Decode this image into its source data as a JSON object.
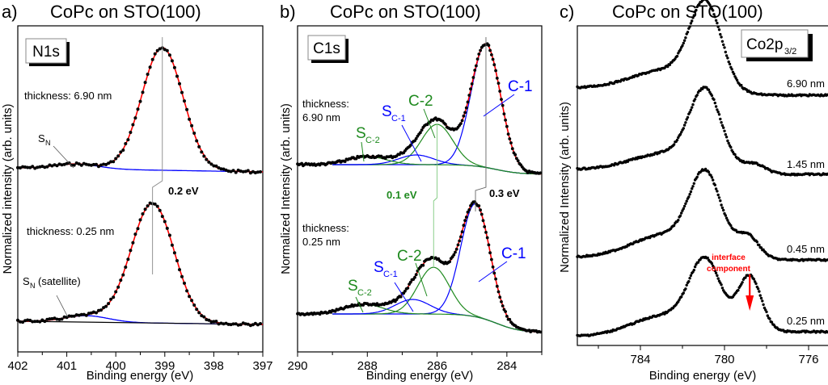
{
  "chart_data": [
    {
      "type": "line",
      "panel_label": "a)",
      "title": "CoPc on STO(100)",
      "core_level_label": "N1s",
      "xlabel": "Binding energy (eV)",
      "ylabel": "Normalized intensity (arb. units)",
      "xlim": [
        402,
        397
      ],
      "x_ticks": [
        "402",
        "401",
        "400",
        "399",
        "398",
        "397"
      ],
      "x_tick_values": [
        402,
        401,
        400,
        399,
        398,
        397
      ],
      "series": [
        {
          "name": "thickness: 6.90 nm",
          "main_peak_eV": 399.05,
          "satellite_eV": 400.8,
          "peak_height": 1.0
        },
        {
          "name": "thickness: 0.25 nm",
          "main_peak_eV": 399.25,
          "satellite_eV": 400.6,
          "peak_height": 1.0
        }
      ],
      "annotations": [
        {
          "text": "S",
          "sub": "N",
          "target": "satellite 6.90 nm"
        },
        {
          "text": "S",
          "sub": "N",
          "suffix": " (satellite)",
          "target": "satellite 0.25 nm"
        },
        {
          "text": "0.2 eV",
          "style": "bold",
          "meaning": "peak shift between thicknesses"
        }
      ],
      "legend_colors": {
        "data": "#000000",
        "fit_envelope": "#ff0000",
        "satellite_component": "#0000ff",
        "background": "#000000"
      }
    },
    {
      "type": "line",
      "panel_label": "b)",
      "title": "CoPc on STO(100)",
      "core_level_label": "C1s",
      "xlabel": "Binding energy (eV)",
      "ylabel": "Normalized Intensity (arb. units)",
      "xlim": [
        290,
        283
      ],
      "x_ticks": [
        "290",
        "288",
        "286",
        "284"
      ],
      "x_tick_values": [
        290,
        288,
        286,
        284
      ],
      "series": [
        {
          "name": "thickness: 6.90 nm",
          "components": {
            "C-1": 284.6,
            "C-2": 286.0,
            "S_C-1": 286.6,
            "S_C-2": 288.0
          }
        },
        {
          "name": "thickness: 0.25 nm",
          "components": {
            "C-1": 284.9,
            "C-2": 286.1,
            "S_C-1": 286.7,
            "S_C-2": 288.1
          }
        }
      ],
      "component_labels": [
        {
          "text": "C-1",
          "color": "#0000ff"
        },
        {
          "text": "C-2",
          "color": "#008000"
        },
        {
          "text": "S",
          "sub": "C-1",
          "color": "#0000ff"
        },
        {
          "text": "S",
          "sub": "C-2",
          "color": "#008000"
        }
      ],
      "annotations": [
        {
          "text": "0.1 eV",
          "style": "bold",
          "color": "#008000",
          "meaning": "C-2 shift"
        },
        {
          "text": "0.3 eV",
          "style": "bold",
          "color": "#000000",
          "meaning": "C-1 shift"
        }
      ],
      "thickness_labels": [
        [
          "thickness:",
          "6.90 nm"
        ],
        [
          "thickness:",
          "0.25 nm"
        ]
      ]
    },
    {
      "type": "line",
      "panel_label": "c)",
      "title": "CoPc on STO(100)",
      "core_level_label": "Co2p",
      "core_level_sub": "3/2",
      "xlabel": "Binding energy (eV)",
      "ylabel": "Normalized Intensity (arb. units)",
      "xlim": [
        787,
        775
      ],
      "x_ticks": [
        "784",
        "780",
        "776"
      ],
      "x_tick_values": [
        784,
        780,
        776
      ],
      "minor_tick_values": [
        786,
        782,
        778
      ],
      "series": [
        {
          "name": "6.90 nm",
          "main_peak_eV": 780.9,
          "shoulder_eV": 782.7
        },
        {
          "name": "1.45 nm",
          "main_peak_eV": 780.9,
          "shoulder_eV": 782.7,
          "low_be_shoulder_eV": 778.6
        },
        {
          "name": "0.45 nm",
          "main_peak_eV": 780.9,
          "low_be_peak_eV": 778.9
        },
        {
          "name": "0.25 nm",
          "main_peak_eV": 780.9,
          "low_be_peak_eV": 778.8
        }
      ],
      "annotations": [
        {
          "text_lines": [
            "interface",
            "component"
          ],
          "color": "#ff0000",
          "arrow_to_eV": 778.8
        }
      ]
    }
  ]
}
